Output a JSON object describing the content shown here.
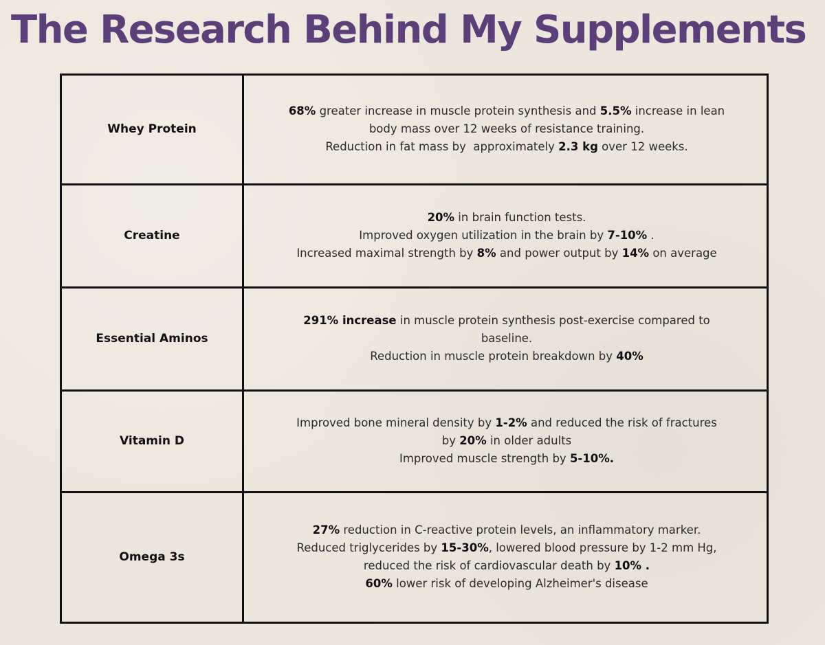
{
  "title": "The Research Behind My Supplements",
  "rows": [
    {
      "name": "Whey Protein",
      "lines": [
        [
          {
            "b": "68%"
          },
          {
            "t": " greater increase in muscle protein synthesis and "
          },
          {
            "b": "5.5%"
          },
          {
            "t": " increase in lean"
          }
        ],
        [
          {
            "t": "body mass over 12 weeks of resistance training."
          }
        ],
        [
          {
            "t": "Reduction in fat mass by  approximately "
          },
          {
            "b": "2.3 kg"
          },
          {
            "t": " over 12 weeks."
          }
        ]
      ]
    },
    {
      "name": "Creatine",
      "lines": [
        [
          {
            "b": "20%"
          },
          {
            "t": " in brain function tests."
          }
        ],
        [
          {
            "t": "Improved oxygen utilization in the brain by "
          },
          {
            "b": "7-10%"
          },
          {
            "t": " ."
          }
        ],
        [
          {
            "t": "Increased maximal strength by "
          },
          {
            "b": "8%"
          },
          {
            "t": " and power output by "
          },
          {
            "b": "14%"
          },
          {
            "t": " on average"
          }
        ]
      ]
    },
    {
      "name": "Essential Aminos",
      "lines": [
        [
          {
            "b": "291% increase"
          },
          {
            "t": " in muscle protein synthesis post-exercise compared to"
          }
        ],
        [
          {
            "t": "baseline."
          }
        ],
        [
          {
            "t": "Reduction in muscle protein breakdown by "
          },
          {
            "b": "40%"
          }
        ]
      ]
    },
    {
      "name": "Vitamin D",
      "lines": [
        [
          {
            "t": "Improved bone mineral density by "
          },
          {
            "b": "1-2%"
          },
          {
            "t": " and reduced the risk of fractures"
          }
        ],
        [
          {
            "t": "by "
          },
          {
            "b": "20%"
          },
          {
            "t": " in older adults"
          }
        ],
        [
          {
            "t": "Improved muscle strength by "
          },
          {
            "b": "5-10%."
          }
        ]
      ]
    },
    {
      "name": "Omega 3s",
      "lines": [
        [
          {
            "b": "27%"
          },
          {
            "t": " reduction in C-reactive protein levels, an inflammatory marker."
          }
        ],
        [
          {
            "t": "Reduced triglycerides by "
          },
          {
            "b": "15-30%"
          },
          {
            "t": ", lowered blood pressure by 1-2 mm Hg,"
          }
        ],
        [
          {
            "t": "reduced the risk of cardiovascular death by "
          },
          {
            "b": "10% ."
          }
        ],
        [
          {
            "b": "60%"
          },
          {
            "t": " lower risk of developing Alzheimer's disease"
          }
        ]
      ]
    }
  ]
}
